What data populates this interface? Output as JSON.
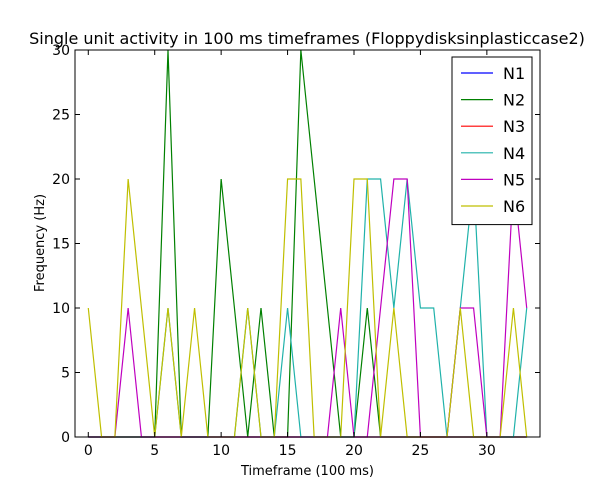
{
  "chart_data": {
    "type": "line",
    "title": "Single unit activity in 100 ms timeframes (Floppydisksinplasticcase2)",
    "xlabel": "Timeframe (100 ms)",
    "ylabel": "Frequency (Hz)",
    "xlim": [
      -1,
      34
    ],
    "ylim": [
      0,
      30
    ],
    "xticks": [
      0,
      5,
      10,
      15,
      20,
      25,
      30
    ],
    "yticks": [
      0,
      5,
      10,
      15,
      20,
      25,
      30
    ],
    "grid": false,
    "legend_position": "top-right",
    "x": [
      0,
      1,
      2,
      3,
      4,
      5,
      6,
      7,
      8,
      9,
      10,
      11,
      12,
      13,
      14,
      15,
      16,
      17,
      18,
      19,
      20,
      21,
      22,
      23,
      24,
      25,
      26,
      27,
      28,
      29,
      30,
      31,
      32,
      33
    ],
    "series": [
      {
        "name": "N1",
        "color": "#0000ff",
        "values": [
          0,
          0,
          0,
          0,
          0,
          0,
          0,
          0,
          0,
          0,
          0,
          0,
          0,
          0,
          0,
          0,
          0,
          0,
          0,
          0,
          0,
          0,
          0,
          0,
          0,
          0,
          0,
          0,
          0,
          0,
          0,
          0,
          0,
          0
        ]
      },
      {
        "name": "N2",
        "color": "#008000",
        "values": [
          0,
          0,
          0,
          0,
          0,
          0,
          30,
          0,
          0,
          0,
          20,
          10,
          0,
          10,
          0,
          0,
          30,
          20,
          10,
          0,
          0,
          10,
          0,
          0,
          0,
          0,
          0,
          0,
          0,
          0,
          0,
          0,
          0,
          0
        ]
      },
      {
        "name": "N3",
        "color": "#ff0000",
        "values": [
          0,
          0,
          0,
          0,
          0,
          0,
          0,
          0,
          0,
          0,
          0,
          0,
          0,
          0,
          0,
          0,
          0,
          0,
          0,
          0,
          0,
          0,
          0,
          0,
          0,
          0,
          0,
          0,
          0,
          0,
          0,
          0,
          0,
          0
        ]
      },
      {
        "name": "N4",
        "color": "#20b2aa",
        "values": [
          0,
          0,
          0,
          0,
          0,
          0,
          10,
          0,
          0,
          0,
          0,
          0,
          10,
          0,
          0,
          10,
          0,
          0,
          0,
          0,
          0,
          20,
          20,
          10,
          20,
          10,
          10,
          0,
          10,
          20,
          0,
          0,
          0,
          10
        ]
      },
      {
        "name": "N5",
        "color": "#bf00bf",
        "values": [
          0,
          0,
          0,
          10,
          0,
          0,
          0,
          0,
          0,
          0,
          0,
          0,
          0,
          0,
          0,
          0,
          0,
          0,
          0,
          10,
          0,
          0,
          10,
          20,
          20,
          0,
          0,
          0,
          10,
          10,
          0,
          0,
          20,
          10
        ]
      },
      {
        "name": "N6",
        "color": "#bfbf00",
        "values": [
          10,
          0,
          0,
          20,
          10,
          0,
          10,
          0,
          10,
          0,
          0,
          0,
          10,
          0,
          0,
          20,
          20,
          0,
          0,
          0,
          20,
          20,
          0,
          10,
          0,
          0,
          0,
          0,
          10,
          0,
          0,
          0,
          10,
          0
        ]
      }
    ]
  }
}
